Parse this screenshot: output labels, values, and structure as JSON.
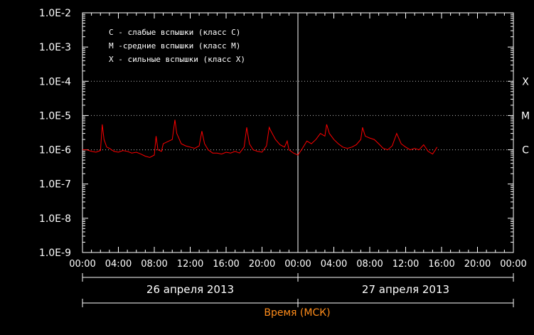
{
  "chart_data": {
    "type": "line",
    "title": "",
    "xlabel": "Время (МСК)",
    "ylabel": "",
    "yscale": "log",
    "ylim": [
      1e-09,
      0.01
    ],
    "xlim": [
      "2013-04-26 00:00",
      "2013-04-28 00:00"
    ],
    "grid": false,
    "y_ticks": [
      "1.0E-9",
      "1.0E-8",
      "1.0E-7",
      "1.0E-6",
      "1.0E-5",
      "1.0E-4",
      "1.0E-3",
      "1.0E-2"
    ],
    "x_ticks": [
      "00:00",
      "04:00",
      "08:00",
      "12:00",
      "16:00",
      "20:00",
      "00:00",
      "04:00",
      "08:00",
      "12:00",
      "16:00",
      "20:00",
      "00:00"
    ],
    "date_labels": [
      "26 апреля 2013",
      "27 апреля 2013"
    ],
    "class_lines": [
      {
        "label": "X",
        "value": 0.0001
      },
      {
        "label": "M",
        "value": 1e-05
      },
      {
        "label": "C",
        "value": 1e-06
      }
    ],
    "legend": {
      "placement": "top-left",
      "entries": [
        "C - слабые вспышки (класс С)",
        "M -средние вспышки (класс М)",
        "X - сильные вспышки (класс X)"
      ]
    },
    "series": [
      {
        "color": "#ff0000",
        "x": [
          0,
          0.5,
          1,
          1.5,
          2,
          2.2,
          2.4,
          2.7,
          3,
          3.5,
          4,
          4.5,
          5,
          5.5,
          6,
          6.5,
          7,
          7.5,
          8,
          8.2,
          8.4,
          8.8,
          9,
          10,
          10.3,
          10.5,
          10.8,
          11,
          11.5,
          12,
          12.5,
          13,
          13.3,
          13.6,
          14,
          14.5,
          15,
          15.5,
          16,
          16.5,
          17,
          17.5,
          18,
          18.3,
          18.6,
          19,
          19.5,
          20,
          20.5,
          20.8,
          21,
          21.5,
          22,
          22.5,
          22.8,
          23,
          23.5,
          24,
          24.5,
          25,
          25.5,
          26,
          26.5,
          27,
          27.2,
          27.5,
          28,
          28.5,
          29,
          29.5,
          30,
          30.5,
          31,
          31.2,
          31.5,
          32,
          32.5,
          33,
          33.5,
          34,
          34.5,
          35,
          35.5,
          36,
          36.5,
          37,
          37.5,
          38,
          38.5,
          39,
          39.5
        ],
        "y": [
          1e-06,
          1e-06,
          9e-07,
          8.5e-07,
          9.5e-07,
          5.5e-06,
          2e-06,
          1.2e-06,
          1.1e-06,
          9e-07,
          8.5e-07,
          9.5e-07,
          9e-07,
          8e-07,
          8.5e-07,
          7.5e-07,
          6.5e-07,
          6e-07,
          7e-07,
          2.5e-06,
          1e-06,
          9e-07,
          1.5e-06,
          2e-06,
          7.5e-06,
          3e-06,
          2e-06,
          1.5e-06,
          1.3e-06,
          1.2e-06,
          1.1e-06,
          1.3e-06,
          3.5e-06,
          1.5e-06,
          1e-06,
          8e-07,
          8e-07,
          7.5e-07,
          8.5e-07,
          8e-07,
          9e-07,
          8e-07,
          1.2e-06,
          4.5e-06,
          1.5e-06,
          1e-06,
          9e-07,
          8.5e-07,
          1.3e-06,
          4.5e-06,
          3.5e-06,
          2e-06,
          1.4e-06,
          1.2e-06,
          1.8e-06,
          1e-06,
          8e-07,
          7e-07,
          1.1e-06,
          1.8e-06,
          1.5e-06,
          2e-06,
          3e-06,
          2.5e-06,
          5.5e-06,
          3e-06,
          2e-06,
          1.5e-06,
          1.2e-06,
          1.1e-06,
          1.2e-06,
          1.4e-06,
          2e-06,
          4.5e-06,
          2.5e-06,
          2.2e-06,
          2e-06,
          1.5e-06,
          1.1e-06,
          1e-06,
          1.3e-06,
          3e-06,
          1.5e-06,
          1.2e-06,
          1e-06,
          1.1e-06,
          1e-06,
          1.4e-06,
          9e-07,
          7.5e-07,
          1.2e-06
        ]
      }
    ]
  }
}
